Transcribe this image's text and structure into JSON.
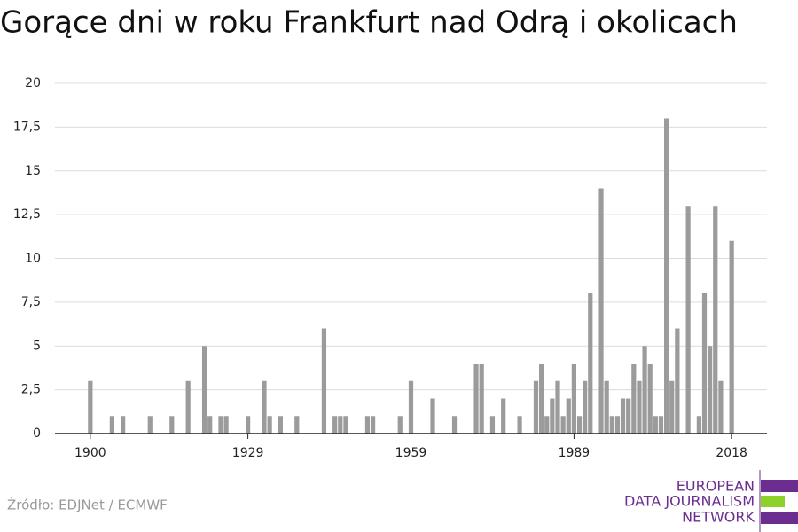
{
  "chart_data": {
    "type": "bar",
    "title": "Gorące dni w roku Frankfurt nad Odrą i okolicach",
    "x": [
      1900,
      1904,
      1906,
      1911,
      1915,
      1918,
      1921,
      1922,
      1924,
      1925,
      1929,
      1932,
      1933,
      1935,
      1938,
      1943,
      1945,
      1946,
      1947,
      1951,
      1952,
      1957,
      1959,
      1963,
      1967,
      1971,
      1972,
      1974,
      1976,
      1979,
      1982,
      1983,
      1984,
      1985,
      1986,
      1987,
      1988,
      1989,
      1990,
      1991,
      1992,
      1994,
      1995,
      1996,
      1997,
      1998,
      1999,
      2000,
      2001,
      2002,
      2003,
      2004,
      2005,
      2006,
      2007,
      2008,
      2010,
      2012,
      2013,
      2014,
      2015,
      2016,
      2018
    ],
    "values": [
      3,
      1,
      1,
      1,
      1,
      3,
      5,
      1,
      1,
      1,
      1,
      3,
      1,
      1,
      1,
      6,
      1,
      1,
      1,
      1,
      1,
      1,
      3,
      2,
      1,
      4,
      4,
      1,
      2,
      1,
      3,
      4,
      1,
      2,
      3,
      1,
      2,
      4,
      1,
      3,
      8,
      14,
      3,
      1,
      1,
      2,
      2,
      4,
      3,
      5,
      4,
      1,
      1,
      18,
      3,
      6,
      13,
      1,
      8,
      5,
      13,
      3,
      11
    ],
    "color": "#9b9b9b",
    "xlim": [
      1893.5,
      2024.5
    ],
    "xticks": [
      1900,
      1929,
      1959,
      1989,
      2018
    ],
    "ylim": [
      0,
      20
    ],
    "yticks": [
      0,
      {
        "value": 2.5,
        "label": "2,5"
      },
      5,
      {
        "value": 7.5,
        "label": "7,5"
      },
      10,
      {
        "value": 12.5,
        "label": "12,5"
      },
      15,
      {
        "value": 17.5,
        "label": "17,5"
      },
      20
    ],
    "grid": true
  },
  "source": "Źródło: EDJNet / ECMWF",
  "logo": {
    "lines": [
      "EUROPEAN",
      "DATA JOURNALISM",
      "NETWORK"
    ]
  }
}
